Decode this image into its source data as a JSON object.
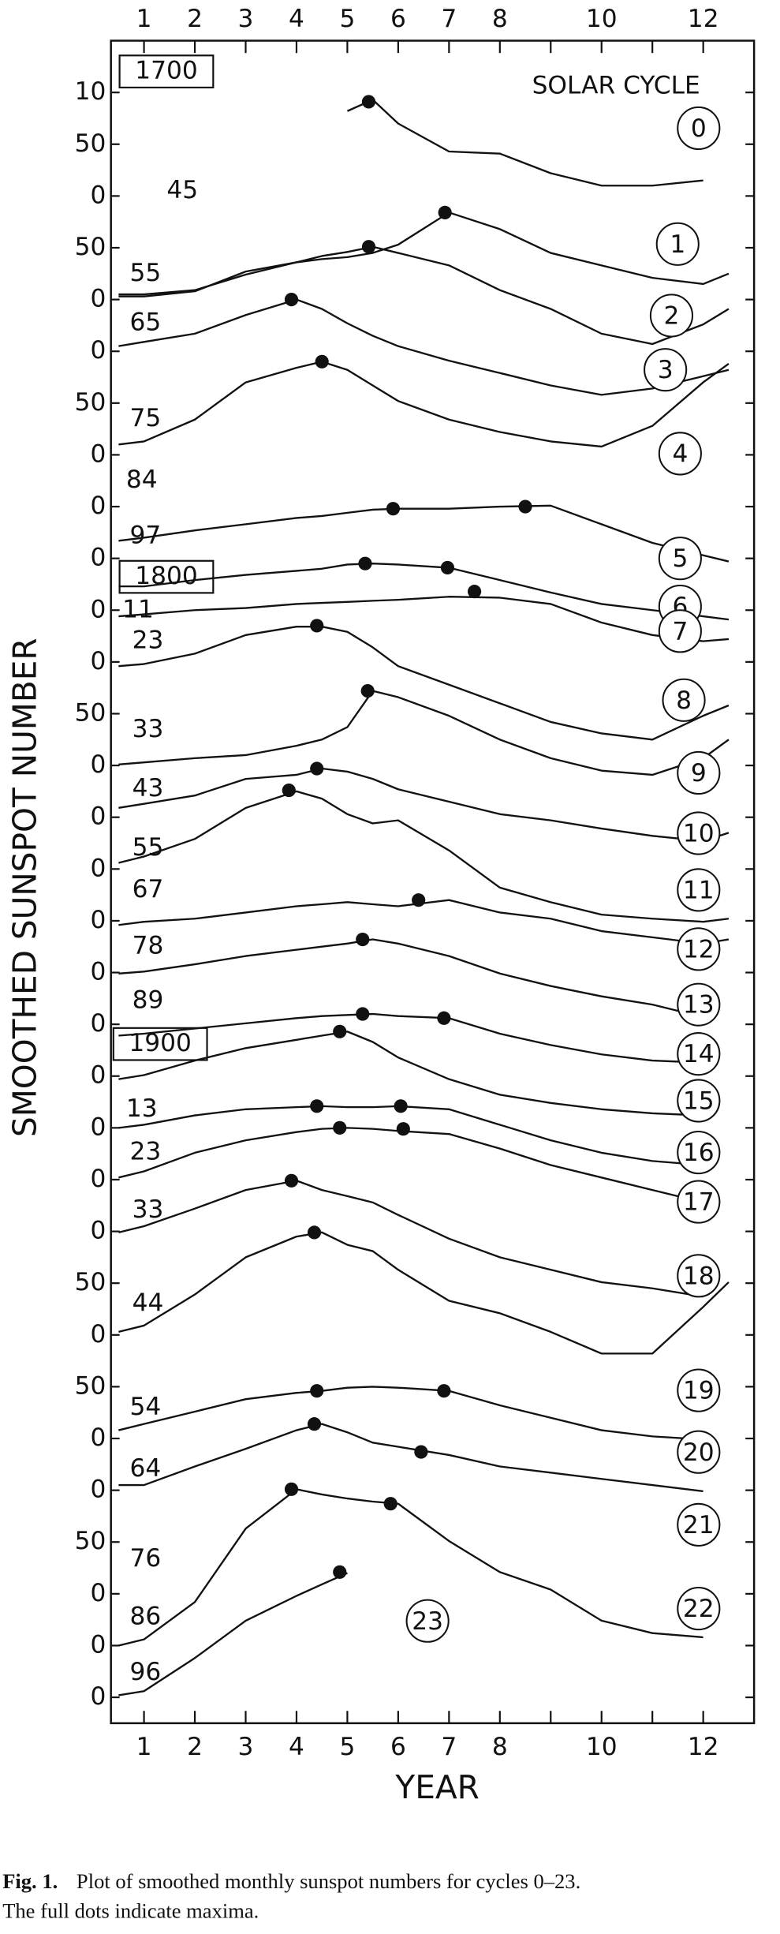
{
  "chart_data": {
    "type": "line",
    "y_label": "SMOOTHED SUNSPOT NUMBER",
    "x_label": "YEAR",
    "legend_title": "SOLAR CYCLE",
    "color": "#111111",
    "xlim": [
      0.35,
      13
    ],
    "xticks": [
      1,
      2,
      3,
      4,
      5,
      6,
      7,
      8,
      10,
      12
    ],
    "xminorticks": [
      9,
      11
    ],
    "ylim": [
      -25,
      1600
    ],
    "yticks": [
      0,
      {
        "value": 50,
        "label": "0"
      },
      {
        "value": 100,
        "label": "0"
      },
      {
        "value": 150,
        "label": "50"
      },
      {
        "value": 200,
        "label": "0"
      },
      {
        "value": 250,
        "label": "0"
      },
      {
        "value": 300,
        "label": "50"
      },
      {
        "value": 350,
        "label": "0"
      },
      {
        "value": 400,
        "label": "50"
      },
      {
        "value": 450,
        "label": "0"
      },
      {
        "value": 500,
        "label": "0"
      },
      {
        "value": 550,
        "label": "0"
      },
      {
        "value": 600,
        "label": "0"
      },
      {
        "value": 650,
        "label": "0"
      },
      {
        "value": 700,
        "label": "0"
      },
      {
        "value": 750,
        "label": "0"
      },
      {
        "value": 800,
        "label": "0"
      },
      {
        "value": 850,
        "label": "0"
      },
      {
        "value": 900,
        "label": "0"
      },
      {
        "value": 950,
        "label": "50"
      },
      {
        "value": 1000,
        "label": "0"
      },
      {
        "value": 1050,
        "label": "0"
      },
      {
        "value": 1100,
        "label": "0"
      },
      {
        "value": 1150,
        "label": "0"
      },
      {
        "value": 1200,
        "label": "0"
      },
      {
        "value": 1250,
        "label": "50"
      },
      {
        "value": 1300,
        "label": "0"
      },
      {
        "value": 1350,
        "label": "0"
      },
      {
        "value": 1400,
        "label": "50"
      },
      {
        "value": 1450,
        "label": "0"
      },
      {
        "value": 1500,
        "label": "50"
      },
      {
        "value": 1550,
        "label": "10"
      }
    ],
    "annotations": [
      "1700",
      "45",
      "55",
      "65",
      "75",
      "84",
      "97",
      "1800",
      "11",
      "23",
      "33",
      "43",
      "55",
      "67",
      "78",
      "89",
      "1900",
      "13",
      "23",
      "33",
      "44",
      "54",
      "64",
      "76",
      "86",
      "96"
    ],
    "x": [
      0.5,
      1,
      2,
      3,
      4,
      4.5,
      5,
      5.5,
      6,
      7,
      8,
      9,
      10,
      11,
      12,
      12.5
    ],
    "series": [
      {
        "name": "0",
        "values": [
          null,
          null,
          null,
          null,
          null,
          null,
          1532,
          1543,
          1520,
          1493,
          1491,
          1472,
          1460,
          1460,
          1465,
          null
        ],
        "maxima": [
          [
            5.42,
            1541
          ]
        ]
      },
      {
        "name": "1",
        "values": [
          1353,
          1353,
          1358,
          1377,
          1386,
          1389,
          1391,
          1395,
          1403,
          1434,
          1418,
          1395,
          1383,
          1371,
          1365,
          1375
        ],
        "maxima": [
          [
            6.92,
            1434
          ]
        ]
      },
      {
        "name": "2",
        "values": [
          1355,
          1355,
          1359,
          1374,
          1386,
          1392,
          1396,
          1401,
          1395,
          1383,
          1359,
          1341,
          1317,
          1307,
          1326,
          1341
        ],
        "maxima": [
          [
            5.42,
            1401
          ]
        ]
      },
      {
        "name": "3",
        "values": [
          1305,
          1309,
          1317,
          1335,
          1350,
          1341,
          1327,
          1315,
          1305,
          1291,
          1279,
          1267,
          1258,
          1264,
          1276,
          1282
        ],
        "maxima": [
          [
            3.9,
            1350
          ]
        ]
      },
      {
        "name": "4",
        "values": [
          1210,
          1213,
          1234,
          1270,
          1284,
          1290,
          1282,
          1267,
          1252,
          1234,
          1222,
          1213,
          1208,
          1228,
          1270,
          1288
        ],
        "maxima": [
          [
            4.5,
            1290
          ]
        ]
      },
      {
        "name": "5",
        "values": [
          1117,
          1120,
          1127,
          1133,
          1139,
          1141,
          1144,
          1147,
          1148,
          1148,
          1150,
          1151,
          1133,
          1115,
          1103,
          1097
        ],
        "maxima": [
          [
            5.9,
            1148
          ],
          [
            8.5,
            1150
          ]
        ]
      },
      {
        "name": "6",
        "values": [
          1073,
          1073,
          1079,
          1084,
          1088,
          1090,
          1094,
          1095,
          1094,
          1091,
          1079,
          1067,
          1056,
          1050,
          1044,
          1041
        ],
        "maxima": [
          [
            5.35,
            1095
          ],
          [
            6.97,
            1091
          ]
        ]
      },
      {
        "name": "7",
        "values": [
          1044,
          1046,
          1050,
          1052,
          1056,
          1057,
          1058,
          1059,
          1060,
          1063,
          1062,
          1056,
          1038,
          1026,
          1020,
          1022
        ],
        "maxima": [
          [
            7.5,
            1068
          ]
        ]
      },
      {
        "name": "8",
        "values": [
          996,
          998,
          1008,
          1026,
          1034,
          1034,
          1029,
          1014,
          996,
          978,
          960,
          942,
          931,
          925,
          948,
          958
        ],
        "maxima": [
          [
            4.4,
            1035
          ]
        ]
      },
      {
        "name": "9",
        "values": [
          901,
          903,
          907,
          910,
          919,
          925,
          937,
          972,
          966,
          948,
          925,
          907,
          895,
          891,
          907,
          925
        ],
        "maxima": [
          [
            5.4,
            972
          ]
        ]
      },
      {
        "name": "10",
        "values": [
          859,
          863,
          871,
          887,
          891,
          897,
          894,
          887,
          877,
          865,
          853,
          847,
          839,
          832,
          827,
          835
        ],
        "maxima": [
          [
            4.4,
            897
          ]
        ]
      },
      {
        "name": "11",
        "values": [
          806,
          812,
          829,
          859,
          875,
          868,
          853,
          844,
          847,
          818,
          782,
          768,
          756,
          752,
          749,
          752
        ],
        "maxima": [
          [
            3.85,
            876
          ]
        ]
      },
      {
        "name": "12",
        "values": [
          746,
          749,
          752,
          758,
          764,
          766,
          768,
          766,
          764,
          770,
          758,
          752,
          740,
          734,
          728,
          732
        ],
        "maxima": [
          [
            6.4,
            770
          ]
        ]
      },
      {
        "name": "13",
        "values": [
          699,
          701,
          708,
          716,
          722,
          725,
          728,
          732,
          728,
          716,
          699,
          687,
          677,
          669,
          657,
          null
        ],
        "maxima": [
          [
            5.3,
            732
          ]
        ]
      },
      {
        "name": "14",
        "values": [
          639,
          641,
          646,
          651,
          656,
          658,
          659,
          660,
          658,
          656,
          641,
          630,
          621,
          615,
          613,
          null
        ],
        "maxima": [
          [
            5.3,
            660
          ],
          [
            6.9,
            656
          ]
        ]
      },
      {
        "name": "15",
        "values": [
          597,
          601,
          615,
          627,
          635,
          639,
          643,
          633,
          618,
          597,
          582,
          574,
          568,
          564,
          562,
          null
        ],
        "maxima": [
          [
            4.85,
            643
          ]
        ]
      },
      {
        "name": "16",
        "values": [
          550,
          553,
          562,
          568,
          570,
          571,
          570,
          570,
          571,
          568,
          553,
          538,
          526,
          518,
          514,
          null
        ],
        "maxima": [
          [
            4.4,
            571
          ],
          [
            6.05,
            571
          ]
        ]
      },
      {
        "name": "17",
        "values": [
          502,
          508,
          526,
          538,
          546,
          549,
          550,
          549,
          547,
          544,
          530,
          514,
          502,
          490,
          478,
          null
        ],
        "maxima": [
          [
            4.85,
            550
          ],
          [
            6.1,
            549
          ]
        ]
      },
      {
        "name": "18",
        "values": [
          449,
          455,
          472,
          490,
          499,
          490,
          484,
          478,
          466,
          443,
          425,
          413,
          401,
          395,
          387,
          null
        ],
        "maxima": [
          [
            3.9,
            499
          ]
        ]
      },
      {
        "name": "19",
        "values": [
          353,
          359,
          389,
          425,
          445,
          449,
          437,
          431,
          413,
          383,
          371,
          353,
          332,
          332,
          377,
          401
        ],
        "maxima": [
          [
            4.35,
            449
          ]
        ]
      },
      {
        "name": "20",
        "values": [
          258,
          264,
          276,
          288,
          294,
          296,
          299,
          300,
          299,
          296,
          282,
          270,
          258,
          252,
          249,
          null
        ],
        "maxima": [
          [
            4.4,
            296
          ],
          [
            6.9,
            296
          ]
        ]
      },
      {
        "name": "21",
        "values": [
          205,
          205,
          223,
          240,
          258,
          264,
          256,
          246,
          242,
          234,
          223,
          217,
          211,
          205,
          199,
          null
        ],
        "maxima": [
          [
            4.35,
            264
          ],
          [
            6.45,
            237
          ]
        ]
      },
      {
        "name": "22",
        "values": [
          50,
          56,
          92,
          163,
          201,
          196,
          192,
          189,
          187,
          151,
          121,
          104,
          74,
          62,
          58,
          null
        ],
        "maxima": [
          [
            3.9,
            201
          ],
          [
            5.85,
            187
          ]
        ]
      },
      {
        "name": "23",
        "values": [
          2,
          6,
          38,
          74,
          98,
          109,
          120,
          null,
          null,
          null,
          null,
          null,
          null,
          null,
          null,
          null
        ],
        "maxima": [
          [
            4.85,
            121
          ]
        ]
      }
    ]
  },
  "caption": {
    "label": "Fig. 1.",
    "lines": [
      "Plot of smoothed monthly sunspot numbers for cycles 0–23.",
      "The full dots indicate maxima."
    ]
  }
}
